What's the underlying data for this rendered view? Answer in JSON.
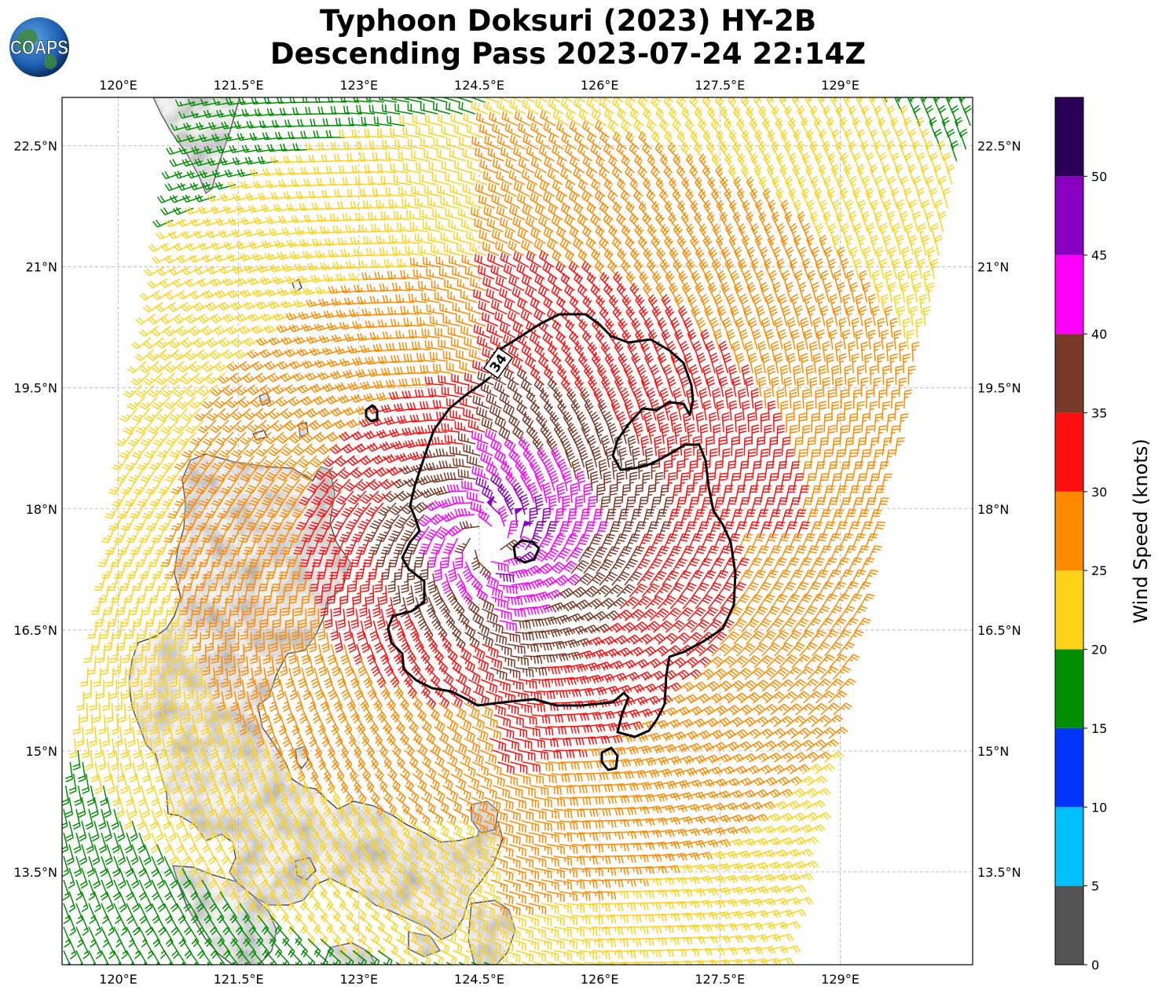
{
  "title": {
    "line1": "Typhoon Doksuri (2023) HY-2B",
    "line2": "Descending Pass 2023-07-24 22:14Z"
  },
  "logo": {
    "text": "COAPS",
    "icon": "globe-logo-icon"
  },
  "map": {
    "lon_range": [
      119.3,
      130.65
    ],
    "lat_range": [
      12.35,
      23.1
    ],
    "lon_ticks": [
      "120°E",
      "121.5°E",
      "123°E",
      "124.5°E",
      "126°E",
      "127.5°E",
      "129°E"
    ],
    "lat_ticks": [
      "22.5°N",
      "21°N",
      "19.5°N",
      "18°N",
      "16.5°N",
      "15°N",
      "13.5°N"
    ],
    "contour_label": "34",
    "storm_center": [
      124.6,
      17.6
    ],
    "gridlines": "dashed gray"
  },
  "colorbar": {
    "label": "Wind Speed (knots)",
    "ticks": [
      "0",
      "5",
      "10",
      "15",
      "20",
      "25",
      "30",
      "35",
      "40",
      "45",
      "50"
    ],
    "colors": [
      "#555555",
      "#00bfff",
      "#0036ff",
      "#008f00",
      "#ffd21a",
      "#ff8a00",
      "#ff1010",
      "#7a3a28",
      "#ff00ff",
      "#8a00c2",
      "#2a0058"
    ],
    "bounds": [
      0,
      5,
      10,
      15,
      20,
      25,
      30,
      35,
      40,
      45,
      50,
      55
    ]
  }
}
